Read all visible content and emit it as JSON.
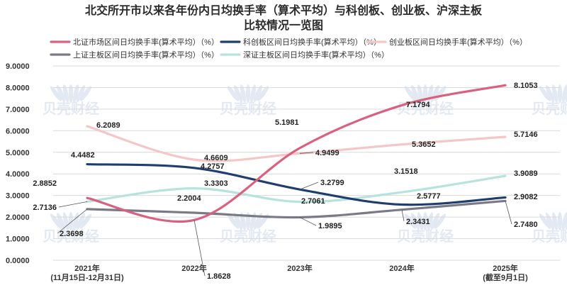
{
  "chart_data": {
    "type": "line",
    "title": [
      "北交所开市以来各年份内日均换手率（算术平均）与科创板、创业板、沪深主板",
      "比较情况一览图"
    ],
    "categories": [
      [
        "2021年",
        "(11月15日-12月31日)"
      ],
      [
        "2022年"
      ],
      [
        "2023年"
      ],
      [
        "2024年"
      ],
      [
        "2025年",
        "(截至9月1日)"
      ]
    ],
    "ylim": [
      0,
      9
    ],
    "yticks": [
      "0.0000",
      "1.0000",
      "2.0000",
      "3.0000",
      "4.0000",
      "5.0000",
      "6.0000",
      "7.0000",
      "8.0000",
      "9.0000"
    ],
    "grid": true,
    "legend_position": "top",
    "series": [
      {
        "name": "北证市场区间日均换手率(算术平均）（%）",
        "color": "#d9607f",
        "values": [
          2.8852,
          1.8628,
          5.1981,
          7.1794,
          8.1053
        ],
        "labels": [
          "2.8852",
          "1.8628",
          "5.1981",
          "7.1794",
          "8.1053"
        ]
      },
      {
        "name": "科创板区间日均换手率(算术平均）（%）",
        "color": "#1f3d6e",
        "values": [
          4.4482,
          4.2757,
          3.2799,
          2.5777,
          2.9082
        ],
        "labels": [
          "4.4482",
          "4.2757",
          "3.2799",
          "2.5777",
          "2.9082"
        ]
      },
      {
        "name": "创业板区间日均换手率(算术平均）（%）",
        "color": "#f5c6c6",
        "values": [
          6.2089,
          4.6609,
          4.9499,
          5.3652,
          5.7146
        ],
        "labels": [
          "6.2089",
          "4.6609",
          "4.9499",
          "5.3652",
          "5.7146"
        ]
      },
      {
        "name": "上证主板区间日均换手率(算术平均）（%）",
        "color": "#7a7a86",
        "values": [
          2.3698,
          2.2004,
          1.9895,
          2.3431,
          2.748
        ],
        "labels": [
          "2.3698",
          "2.2004",
          "1.9895",
          "2.3431",
          "2.7480"
        ]
      },
      {
        "name": "深证主板区间日均换手率(算术平均）（%）",
        "color": "#b6e3dc",
        "values": [
          2.7136,
          3.3303,
          2.7061,
          3.1518,
          3.9089
        ],
        "labels": [
          "2.7136",
          "3.3303",
          "2.7061",
          "3.1518",
          "3.9089"
        ]
      }
    ]
  },
  "watermark_text": "贝壳财经"
}
